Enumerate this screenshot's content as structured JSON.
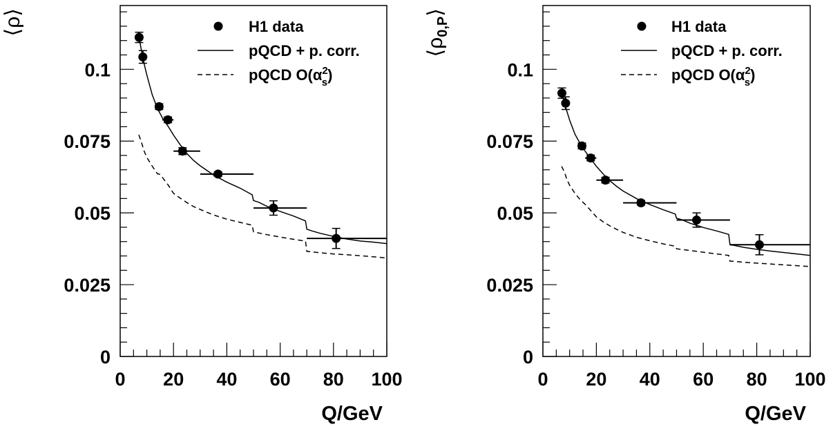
{
  "chart_data": [
    {
      "type": "scatter",
      "xlabel": "Q/GeV",
      "ylabel": "⟨ρ⟩",
      "xlim": [
        0,
        100
      ],
      "ylim": [
        0,
        0.1222
      ],
      "x_ticks": [
        0,
        20,
        40,
        60,
        80,
        100
      ],
      "x_tick_labels": [
        "0",
        "20",
        "40",
        "60",
        "80",
        "100"
      ],
      "y_ticks": [
        0,
        0.025,
        0.05,
        0.075,
        0.1
      ],
      "y_tick_labels": [
        "0",
        "0.025",
        "0.05",
        "0.075",
        "0.1"
      ],
      "legend_position": "top-right",
      "legend": [
        {
          "text": "H1 data",
          "style": "marker"
        },
        {
          "text": "pQCD + p. corr.",
          "style": "solid"
        },
        {
          "text": "pQCD O(α",
          "sup": "2",
          "sub": "s",
          "close": ")",
          "style": "dashed"
        }
      ],
      "series": [
        {
          "name": "H1 data",
          "kind": "points",
          "x": [
            7.1,
            8.5,
            14.6,
            17.9,
            23.4,
            36.7,
            57.5,
            81.0
          ],
          "y": [
            0.1111,
            0.1043,
            0.087,
            0.0824,
            0.0715,
            0.0635,
            0.0517,
            0.0411
          ],
          "x_err": [
            [
              6.5,
              7.7
            ],
            [
              7.7,
              9.3
            ],
            [
              13.4,
              15.8
            ],
            [
              15.8,
              20.0
            ],
            [
              20.0,
              30.0
            ],
            [
              30.0,
              50.0
            ],
            [
              50.0,
              70.0
            ],
            [
              70.0,
              100.0
            ]
          ],
          "y_err": [
            0.0018,
            0.0022,
            0.001,
            0.001,
            0.0012,
            0.0008,
            0.0025,
            0.0035
          ]
        },
        {
          "name": "pQCD + p. corr.",
          "kind": "solid",
          "x": [
            7.1,
            8,
            9,
            10,
            12,
            14,
            16,
            18,
            20,
            22.5,
            25,
            27.5,
            30,
            35,
            40,
            45,
            49.5,
            50,
            52,
            55,
            60,
            65,
            69.5,
            70,
            72,
            75,
            80,
            85,
            90,
            95,
            100
          ],
          "y": [
            0.111,
            0.1064,
            0.1019,
            0.098,
            0.0912,
            0.0863,
            0.0828,
            0.0801,
            0.0771,
            0.0737,
            0.0707,
            0.0683,
            0.0664,
            0.0632,
            0.0607,
            0.0586,
            0.0563,
            0.0543,
            0.0537,
            0.0523,
            0.0505,
            0.0489,
            0.0472,
            0.0443,
            0.0437,
            0.0429,
            0.0418,
            0.0409,
            0.0402,
            0.0398,
            0.0393
          ]
        },
        {
          "name": "pQCD O(αs2)",
          "kind": "dashed",
          "x": [
            7,
            8,
            9,
            10,
            12,
            14,
            15,
            16,
            18,
            20,
            22.5,
            25,
            27.5,
            30,
            35,
            40,
            45,
            49.5,
            50,
            55,
            60,
            65,
            69.5,
            70,
            72,
            75,
            80,
            85,
            90,
            95,
            100
          ],
          "y": [
            0.0772,
            0.0745,
            0.0715,
            0.0693,
            0.0663,
            0.0636,
            0.0634,
            0.0621,
            0.0597,
            0.0568,
            0.0551,
            0.0536,
            0.0522,
            0.0512,
            0.0493,
            0.0478,
            0.0467,
            0.0457,
            0.0434,
            0.0424,
            0.0416,
            0.0408,
            0.0402,
            0.0366,
            0.0364,
            0.0361,
            0.0357,
            0.0354,
            0.0351,
            0.0347,
            0.0343
          ]
        }
      ]
    },
    {
      "type": "scatter",
      "xlabel": "Q/GeV",
      "ylabel": "⟨ρ",
      "ylabel_sub": "0,P",
      "ylabel_close": "⟩",
      "xlim": [
        0,
        100
      ],
      "ylim": [
        0,
        0.1222
      ],
      "x_ticks": [
        0,
        20,
        40,
        60,
        80,
        100
      ],
      "x_tick_labels": [
        "0",
        "20",
        "40",
        "60",
        "80",
        "100"
      ],
      "y_ticks": [
        0,
        0.025,
        0.05,
        0.075,
        0.1
      ],
      "y_tick_labels": [
        "0",
        "0.025",
        "0.05",
        "0.075",
        "0.1"
      ],
      "legend_position": "top-right",
      "legend": [
        {
          "text": "H1 data",
          "style": "marker"
        },
        {
          "text": "pQCD + p. corr.",
          "style": "solid"
        },
        {
          "text": "pQCD O(α",
          "sup": "2",
          "sub": "s",
          "close": ")",
          "style": "dashed"
        }
      ],
      "series": [
        {
          "name": "H1 data",
          "kind": "points",
          "x": [
            7.1,
            8.5,
            14.6,
            17.9,
            23.4,
            36.7,
            57.5,
            81.0
          ],
          "y": [
            0.0917,
            0.0882,
            0.0733,
            0.0691,
            0.0614,
            0.0535,
            0.0475,
            0.0389
          ],
          "x_err": [
            [
              6.5,
              7.7
            ],
            [
              7.7,
              9.3
            ],
            [
              13.4,
              15.8
            ],
            [
              15.8,
              20.0
            ],
            [
              20.0,
              30.0
            ],
            [
              30.0,
              50.0
            ],
            [
              50.0,
              70.0
            ],
            [
              70.0,
              100.0
            ]
          ],
          "y_err": [
            0.0018,
            0.0022,
            0.001,
            0.001,
            0.001,
            0.0008,
            0.0025,
            0.0035
          ]
        },
        {
          "name": "pQCD + p. corr.",
          "kind": "solid",
          "x": [
            7.1,
            8,
            9,
            10,
            12,
            14,
            16,
            18,
            20,
            22.5,
            25,
            27.5,
            30,
            35,
            40,
            45,
            49.5,
            50,
            52,
            55,
            60,
            65,
            69.5,
            70,
            72,
            75,
            80,
            85,
            90,
            95,
            100
          ],
          "y": [
            0.0917,
            0.0885,
            0.0853,
            0.0823,
            0.0774,
            0.074,
            0.0712,
            0.0687,
            0.0662,
            0.0636,
            0.0612,
            0.0593,
            0.0576,
            0.055,
            0.0529,
            0.0511,
            0.0496,
            0.0481,
            0.0476,
            0.0464,
            0.0449,
            0.0437,
            0.0425,
            0.0389,
            0.0386,
            0.038,
            0.0373,
            0.0367,
            0.0362,
            0.0357,
            0.0352
          ]
        },
        {
          "name": "pQCD O(αs2)",
          "kind": "dashed",
          "x": [
            7,
            8,
            9,
            10,
            12,
            14,
            15,
            16,
            18,
            20,
            22.5,
            25,
            27.5,
            30,
            35,
            40,
            45,
            49.5,
            50,
            55,
            60,
            65,
            69.5,
            70,
            72,
            75,
            80,
            85,
            90,
            95,
            100
          ],
          "y": [
            0.0662,
            0.0643,
            0.0616,
            0.0596,
            0.0568,
            0.0545,
            0.0537,
            0.0528,
            0.0507,
            0.0486,
            0.0469,
            0.0455,
            0.0443,
            0.0432,
            0.0415,
            0.0403,
            0.0392,
            0.0384,
            0.0375,
            0.0369,
            0.0363,
            0.0357,
            0.0352,
            0.0332,
            0.0331,
            0.0328,
            0.0325,
            0.0322,
            0.0319,
            0.0316,
            0.0313
          ]
        }
      ]
    }
  ]
}
